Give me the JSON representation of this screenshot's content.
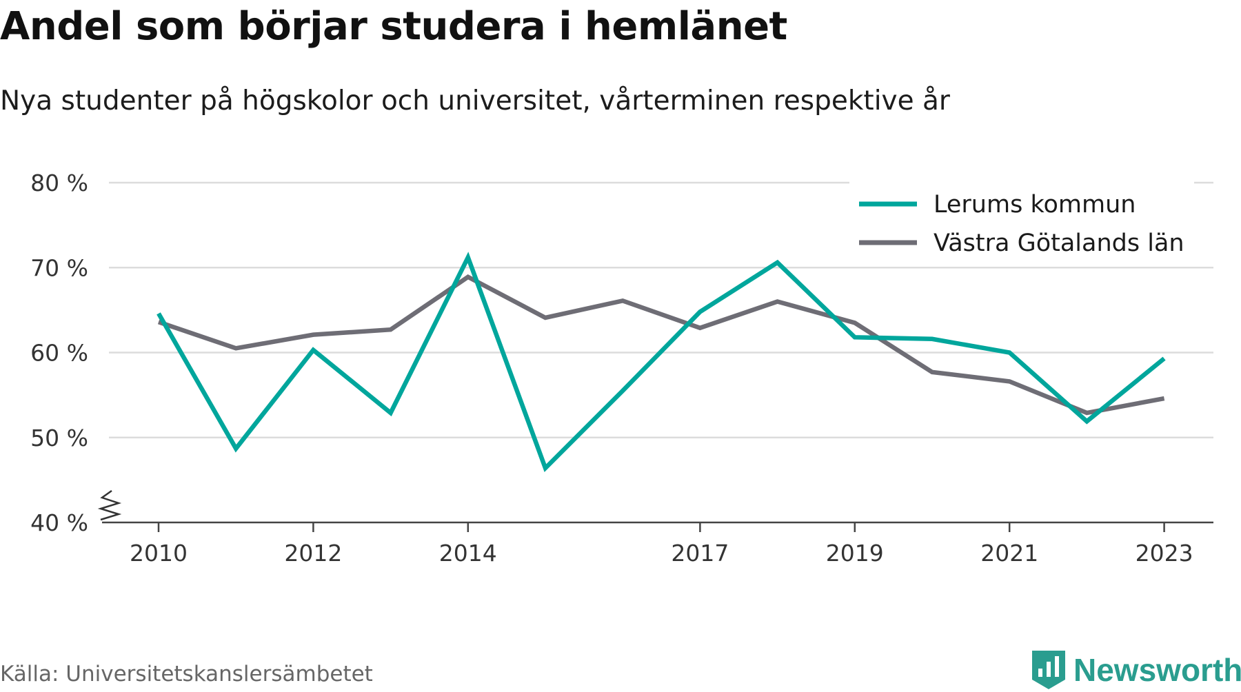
{
  "title": "Andel som börjar studera i hemlänet",
  "subtitle": "Nya studenter på högskolor och universitet, vårterminen respektive år",
  "source": "Källa: Universitetskanslersämbetet",
  "brand": {
    "name": "Newsworthy",
    "icon": "newsworthy-bar-chart-logo",
    "color": "#2a9d8f"
  },
  "chart_data": {
    "type": "line",
    "title": "Andel som börjar studera i hemlänet",
    "subtitle": "Nya studenter på högskolor och universitet, vårterminen respektive år",
    "x": [
      2010,
      2011,
      2012,
      2013,
      2014,
      2015,
      2016,
      2017,
      2018,
      2019,
      2020,
      2021,
      2022,
      2023
    ],
    "xticks": [
      "2010",
      "2012",
      "2014",
      "2017",
      "2019",
      "2021",
      "2023"
    ],
    "yticks": [
      "40 %",
      "50 %",
      "60 %",
      "70 %",
      "80 %"
    ],
    "ylim": [
      40,
      80
    ],
    "y_axis_break": true,
    "grid": true,
    "legend": "top-right",
    "series": [
      {
        "name": "Lerums kommun",
        "color": "#00a69c",
        "values": [
          64.6,
          48.7,
          60.3,
          52.9,
          71.2,
          46.4,
          55.5,
          64.8,
          70.6,
          61.8,
          61.6,
          60.0,
          51.9,
          59.3
        ]
      },
      {
        "name": "Västra Götalands län",
        "color": "#6e6d75",
        "values": [
          63.6,
          60.5,
          62.1,
          62.7,
          68.9,
          64.1,
          66.1,
          62.9,
          66.0,
          63.5,
          57.7,
          56.6,
          52.9,
          54.6
        ]
      }
    ]
  }
}
